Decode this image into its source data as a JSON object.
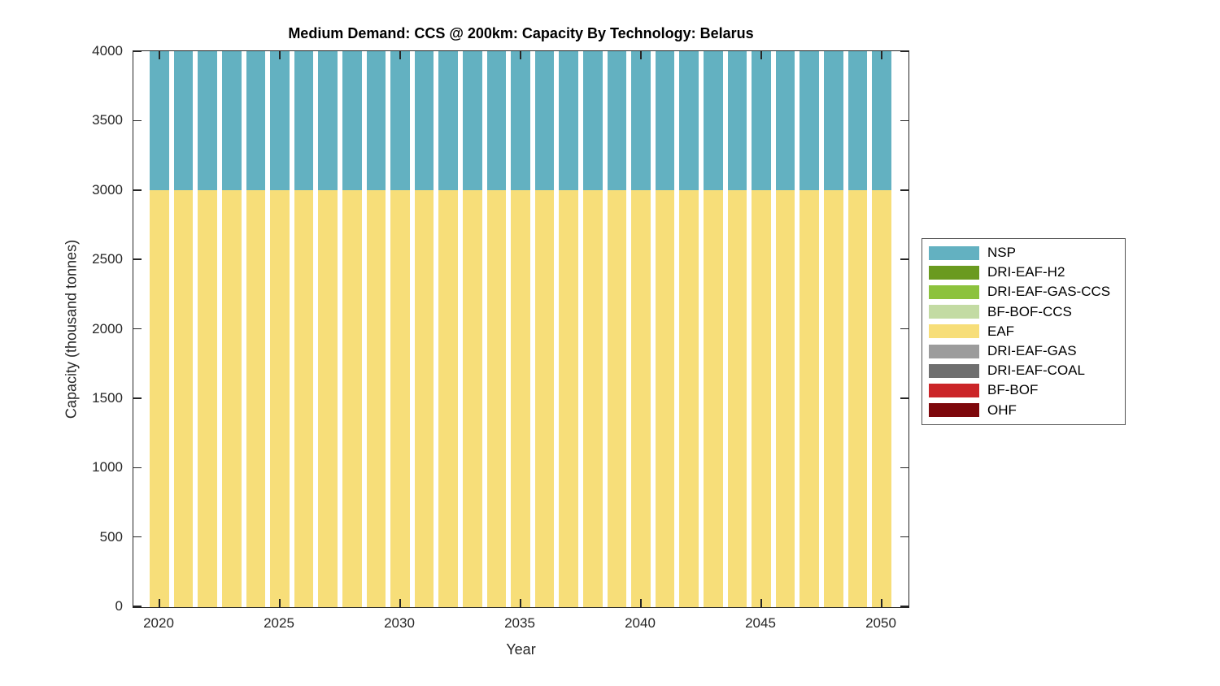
{
  "chart_data": {
    "type": "bar",
    "stacked": true,
    "title": "Medium Demand: CCS @ 200km: Capacity By Technology: Belarus",
    "xlabel": "Year",
    "ylabel": "Capacity (thousand tonnes)",
    "ylim": [
      0,
      4000
    ],
    "xticks": [
      2020,
      2025,
      2030,
      2035,
      2040,
      2045,
      2050
    ],
    "yticks": [
      0,
      500,
      1000,
      1500,
      2000,
      2500,
      3000,
      3500,
      4000
    ],
    "grid": false,
    "legend_position": "right-outside",
    "axis_color": "#262626",
    "x": [
      2020,
      2021,
      2022,
      2023,
      2024,
      2025,
      2026,
      2027,
      2028,
      2029,
      2030,
      2031,
      2032,
      2033,
      2034,
      2035,
      2036,
      2037,
      2038,
      2039,
      2040,
      2041,
      2042,
      2043,
      2044,
      2045,
      2046,
      2047,
      2048,
      2049,
      2050
    ],
    "series": [
      {
        "name": "NSP",
        "color": "#63B1C1",
        "values": [
          1000,
          1000,
          1000,
          1000,
          1000,
          1000,
          1000,
          1000,
          1000,
          1000,
          1000,
          1000,
          1000,
          1000,
          1000,
          1000,
          1000,
          1000,
          1000,
          1000,
          1000,
          1000,
          1000,
          1000,
          1000,
          1000,
          1000,
          1000,
          1000,
          1000,
          1000
        ]
      },
      {
        "name": "DRI-EAF-H2",
        "color": "#6A9A1F",
        "values": [
          0,
          0,
          0,
          0,
          0,
          0,
          0,
          0,
          0,
          0,
          0,
          0,
          0,
          0,
          0,
          0,
          0,
          0,
          0,
          0,
          0,
          0,
          0,
          0,
          0,
          0,
          0,
          0,
          0,
          0,
          0
        ]
      },
      {
        "name": "DRI-EAF-GAS-CCS",
        "color": "#8CC23D",
        "values": [
          0,
          0,
          0,
          0,
          0,
          0,
          0,
          0,
          0,
          0,
          0,
          0,
          0,
          0,
          0,
          0,
          0,
          0,
          0,
          0,
          0,
          0,
          0,
          0,
          0,
          0,
          0,
          0,
          0,
          0,
          0
        ]
      },
      {
        "name": "BF-BOF-CCS",
        "color": "#C3DBA3",
        "values": [
          0,
          0,
          0,
          0,
          0,
          0,
          0,
          0,
          0,
          0,
          0,
          0,
          0,
          0,
          0,
          0,
          0,
          0,
          0,
          0,
          0,
          0,
          0,
          0,
          0,
          0,
          0,
          0,
          0,
          0,
          0
        ]
      },
      {
        "name": "EAF",
        "color": "#F7DE79",
        "values": [
          3000,
          3000,
          3000,
          3000,
          3000,
          3000,
          3000,
          3000,
          3000,
          3000,
          3000,
          3000,
          3000,
          3000,
          3000,
          3000,
          3000,
          3000,
          3000,
          3000,
          3000,
          3000,
          3000,
          3000,
          3000,
          3000,
          3000,
          3000,
          3000,
          3000,
          3000
        ]
      },
      {
        "name": "DRI-EAF-GAS",
        "color": "#9C9C9C",
        "values": [
          0,
          0,
          0,
          0,
          0,
          0,
          0,
          0,
          0,
          0,
          0,
          0,
          0,
          0,
          0,
          0,
          0,
          0,
          0,
          0,
          0,
          0,
          0,
          0,
          0,
          0,
          0,
          0,
          0,
          0,
          0
        ]
      },
      {
        "name": "DRI-EAF-COAL",
        "color": "#6F6F6F",
        "values": [
          0,
          0,
          0,
          0,
          0,
          0,
          0,
          0,
          0,
          0,
          0,
          0,
          0,
          0,
          0,
          0,
          0,
          0,
          0,
          0,
          0,
          0,
          0,
          0,
          0,
          0,
          0,
          0,
          0,
          0,
          0
        ]
      },
      {
        "name": "BF-BOF",
        "color": "#CB2528",
        "values": [
          0,
          0,
          0,
          0,
          0,
          0,
          0,
          0,
          0,
          0,
          0,
          0,
          0,
          0,
          0,
          0,
          0,
          0,
          0,
          0,
          0,
          0,
          0,
          0,
          0,
          0,
          0,
          0,
          0,
          0,
          0
        ]
      },
      {
        "name": "OHF",
        "color": "#7D070B",
        "values": [
          0,
          0,
          0,
          0,
          0,
          0,
          0,
          0,
          0,
          0,
          0,
          0,
          0,
          0,
          0,
          0,
          0,
          0,
          0,
          0,
          0,
          0,
          0,
          0,
          0,
          0,
          0,
          0,
          0,
          0,
          0
        ]
      }
    ]
  }
}
